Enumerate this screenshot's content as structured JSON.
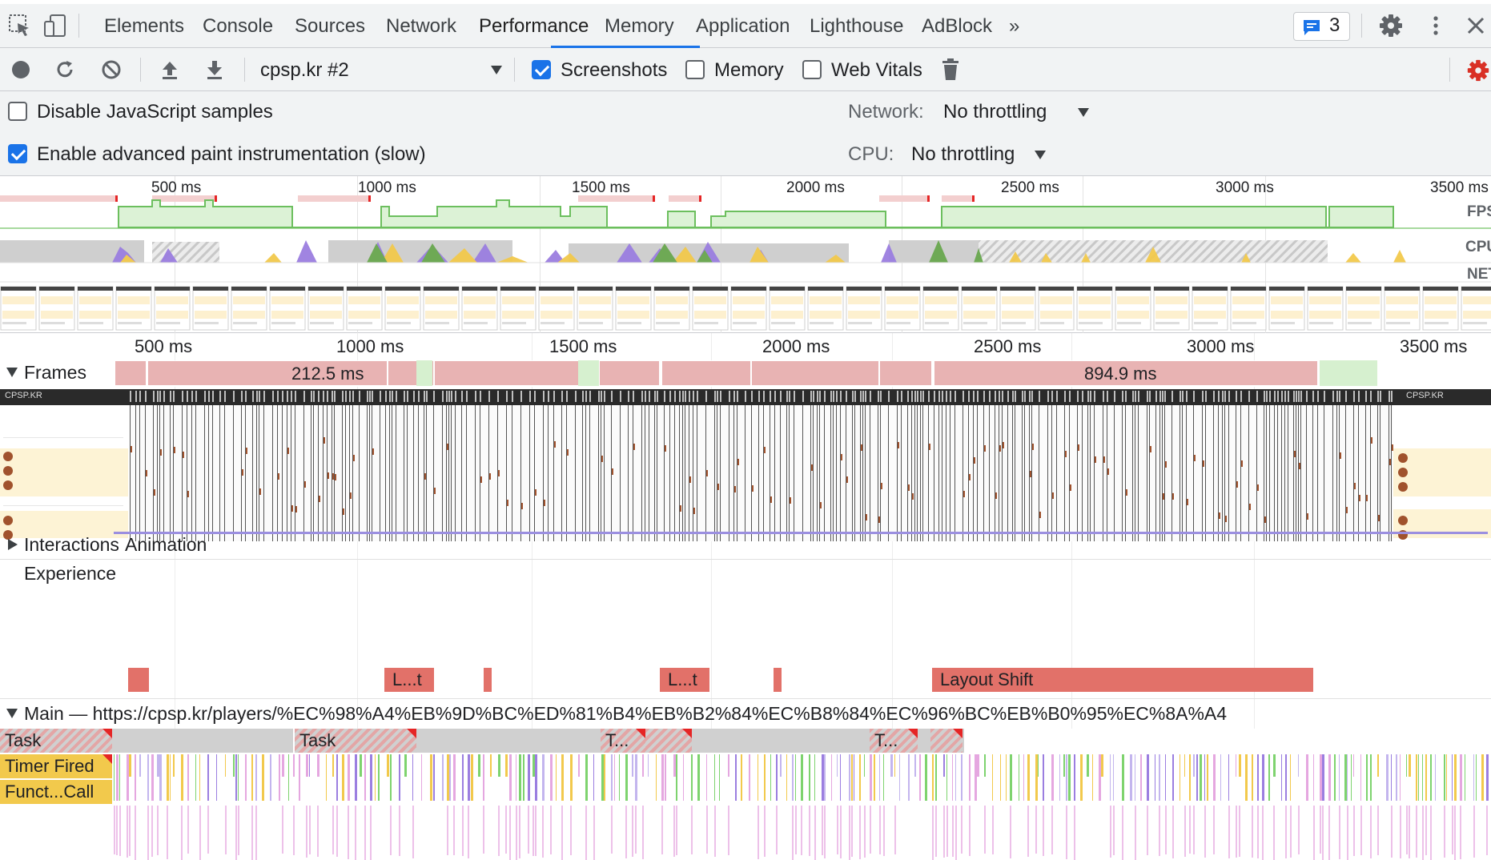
{
  "tabs": {
    "items": [
      "Elements",
      "Console",
      "Sources",
      "Network",
      "Performance",
      "Memory",
      "Application",
      "Lighthouse",
      "AdBlock"
    ],
    "active": "Performance",
    "more": "»",
    "issues_count": "3"
  },
  "toolbar": {
    "profile_select": "cpsp.kr #2",
    "screenshots_label": "Screenshots",
    "screenshots_checked": true,
    "memory_label": "Memory",
    "memory_checked": false,
    "web_vitals_label": "Web Vitals",
    "web_vitals_checked": false
  },
  "settings": {
    "disable_js_samples": "Disable JavaScript samples",
    "advanced_paint": "Enable advanced paint instrumentation (slow)",
    "network_label": "Network:",
    "network_value": "No throttling",
    "cpu_label": "CPU:",
    "cpu_value": "No throttling"
  },
  "overview": {
    "ticks": [
      "500 ms",
      "1000 ms",
      "1500 ms",
      "2000 ms",
      "2500 ms",
      "3000 ms",
      "3500 ms"
    ],
    "fps_label": "FPS",
    "cpu_label": "CPU",
    "net_label": "NET"
  },
  "timeline": {
    "ticks": [
      "500 ms",
      "1000 ms",
      "1500 ms",
      "2000 ms",
      "2500 ms",
      "3000 ms",
      "3500 ms"
    ],
    "frames_label": "Frames",
    "frame_duration_1": "212.5 ms",
    "frame_duration_2": "894.9 ms",
    "layers_site_name": "CPSP.KR",
    "interactions_label": "Interactions",
    "animation_label": "Animation",
    "experience_label": "Experience",
    "experience_items": [
      "L...t",
      "L...t",
      "Layout Shift"
    ],
    "main_label": "Main — https://cpsp.kr/players/%EC%98%A4%EB%9D%BC%ED%81%B4%EB%B2%84%EC%B8%84%EC%96%BC%EB%B0%95%EC%8A%A4",
    "task_labels": [
      "Task",
      "Task",
      "T...",
      "T..."
    ],
    "timer_fired": "Timer Fired",
    "function_call": "Funct...Call"
  },
  "colors": {
    "accent": "#1a73e8",
    "fps": "#7ed36e",
    "scripting": "#f2c94c",
    "rendering": "#9b7ee0",
    "painting": "#69a84f",
    "long_frame": "#e8b3b3",
    "layout_shift": "#e27169"
  }
}
